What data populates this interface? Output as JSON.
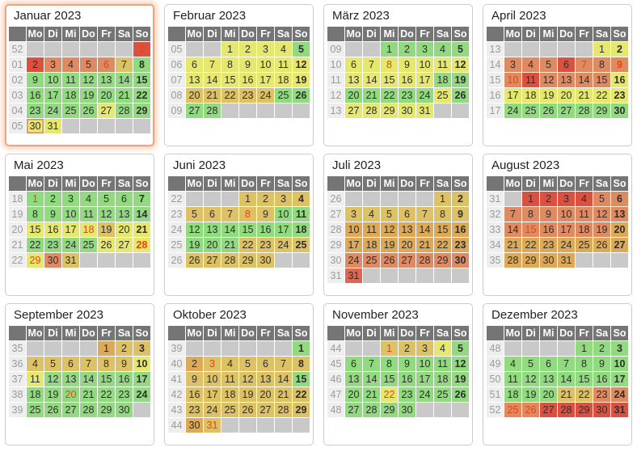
{
  "calendar": {
    "year": "2023",
    "weekday_headers": [
      "Mo",
      "Di",
      "Mi",
      "Do",
      "Fr",
      "Sa",
      "So"
    ],
    "highlighted_month": "Januar 2023",
    "today": "30. Januar 2023"
  },
  "colors": {
    "level_green": "#92da7f",
    "level_yellow": "#e6e76f",
    "level_gold": "#dcc166",
    "level_amber": "#dba957",
    "level_salmon": "#de8a62",
    "level_lightred": "#e3654f",
    "level_red": "#da5142",
    "empty_cell": "#c9c9c9",
    "header_bg": "#757575",
    "weeknum_bg": "#eeeeee",
    "weeknum_text": "#9a9a9a",
    "day_text": "#2e2e2e",
    "holiday_text": "#ea4408",
    "today_border": "#e2836a",
    "panel_border": "#cccccc",
    "highlight_border": "#f0a47e",
    "highlight_glow": "rgba(243,176,130,0.6)",
    "title_text": "#222222"
  },
  "months": [
    {
      "title": "Januar 2023",
      "slug": "januar",
      "highlight": true,
      "weeks": [
        {
          "n": "52",
          "d": [
            "",
            "",
            "",
            "",
            "",
            "",
            "1:r:h"
          ]
        },
        {
          "n": "01",
          "d": [
            "2:r",
            "3:s",
            "4:s",
            "5:s",
            "6:s:h",
            "7:t",
            "8:g"
          ]
        },
        {
          "n": "02",
          "d": [
            "9:g",
            "10:g",
            "11:g",
            "12:g",
            "13:g",
            "14:g",
            "15:g"
          ]
        },
        {
          "n": "03",
          "d": [
            "16:g",
            "17:g",
            "18:g",
            "19:g",
            "20:g",
            "21:g",
            "22:g"
          ]
        },
        {
          "n": "04",
          "d": [
            "23:g",
            "24:g",
            "25:g",
            "26:g",
            "27:y",
            "28:g",
            "29:g"
          ]
        },
        {
          "n": "05",
          "d": [
            "30:y:T",
            "31:y",
            "",
            "",
            "",
            "",
            ""
          ]
        }
      ]
    },
    {
      "title": "Februar 2023",
      "slug": "februar",
      "highlight": false,
      "weeks": [
        {
          "n": "05",
          "d": [
            "",
            "",
            "1:y",
            "2:y",
            "3:y",
            "4:y",
            "5:g"
          ]
        },
        {
          "n": "06",
          "d": [
            "6:y",
            "7:y",
            "8:y",
            "9:y",
            "10:y",
            "11:y",
            "12:y"
          ]
        },
        {
          "n": "07",
          "d": [
            "13:y",
            "14:y",
            "15:y",
            "16:y",
            "17:y",
            "18:y",
            "19:y"
          ]
        },
        {
          "n": "08",
          "d": [
            "20:t",
            "21:t",
            "22:t",
            "23:t",
            "24:t",
            "25:g",
            "26:g"
          ]
        },
        {
          "n": "09",
          "d": [
            "27:g",
            "28:g",
            "",
            "",
            "",
            "",
            ""
          ]
        }
      ]
    },
    {
      "title": "März 2023",
      "slug": "maerz",
      "highlight": false,
      "weeks": [
        {
          "n": "09",
          "d": [
            "",
            "",
            "1:g",
            "2:g",
            "3:g",
            "4:g",
            "5:g"
          ]
        },
        {
          "n": "10",
          "d": [
            "6:y",
            "7:y",
            "8:y:h",
            "9:y",
            "10:y",
            "11:y",
            "12:y"
          ]
        },
        {
          "n": "11",
          "d": [
            "13:y",
            "14:y",
            "15:y",
            "16:y",
            "17:y",
            "18:g",
            "19:g"
          ]
        },
        {
          "n": "12",
          "d": [
            "20:g",
            "21:g",
            "22:g",
            "23:g",
            "24:g",
            "25:y",
            "26:g"
          ]
        },
        {
          "n": "13",
          "d": [
            "27:y",
            "28:y",
            "29:y",
            "30:y",
            "31:y",
            "",
            ""
          ]
        }
      ]
    },
    {
      "title": "April 2023",
      "slug": "april",
      "highlight": false,
      "weeks": [
        {
          "n": "13",
          "d": [
            "",
            "",
            "",
            "",
            "",
            "1:y",
            "2:y"
          ]
        },
        {
          "n": "14",
          "d": [
            "3:s",
            "4:s",
            "5:s",
            "6:r",
            "7:s:h",
            "8:s",
            "9:s:h"
          ]
        },
        {
          "n": "15",
          "d": [
            "10:s:h",
            "11:r",
            "12:s",
            "13:s",
            "14:s",
            "15:s",
            "16:y"
          ]
        },
        {
          "n": "16",
          "d": [
            "17:y",
            "18:y",
            "19:y",
            "20:y",
            "21:y",
            "22:y",
            "23:y"
          ]
        },
        {
          "n": "17",
          "d": [
            "24:g",
            "25:g",
            "26:g",
            "27:g",
            "28:g",
            "29:g",
            "30:g"
          ]
        }
      ]
    },
    {
      "title": "Mai 2023",
      "slug": "mai",
      "highlight": false,
      "weeks": [
        {
          "n": "18",
          "d": [
            "1:g:h",
            "2:g",
            "3:g",
            "4:g",
            "5:g",
            "6:g",
            "7:g"
          ]
        },
        {
          "n": "19",
          "d": [
            "8:g",
            "9:g",
            "10:g",
            "11:g",
            "12:g",
            "13:g",
            "14:g"
          ]
        },
        {
          "n": "20",
          "d": [
            "15:y",
            "16:y",
            "17:y",
            "18:y:h",
            "19:t",
            "20:y",
            "21:y"
          ]
        },
        {
          "n": "21",
          "d": [
            "22:g",
            "23:g",
            "24:g",
            "25:g",
            "26:y",
            "27:y",
            "28:y:h"
          ]
        },
        {
          "n": "22",
          "d": [
            "29:y:h",
            "30:s",
            "31:t",
            "",
            "",
            "",
            ""
          ]
        }
      ]
    },
    {
      "title": "Juni 2023",
      "slug": "juni",
      "highlight": false,
      "weeks": [
        {
          "n": "22",
          "d": [
            "",
            "",
            "",
            "1:t",
            "2:t",
            "3:t",
            "4:t"
          ]
        },
        {
          "n": "23",
          "d": [
            "5:t",
            "6:t",
            "7:t",
            "8:t:h",
            "9:t",
            "10:g",
            "11:g"
          ]
        },
        {
          "n": "24",
          "d": [
            "12:g",
            "13:g",
            "14:g",
            "15:g",
            "16:g",
            "17:g",
            "18:g"
          ]
        },
        {
          "n": "25",
          "d": [
            "19:g",
            "20:g",
            "21:g",
            "22:t",
            "23:t",
            "24:t",
            "25:t"
          ]
        },
        {
          "n": "26",
          "d": [
            "26:t",
            "27:t",
            "28:t",
            "29:t",
            "30:t",
            "",
            ""
          ]
        }
      ]
    },
    {
      "title": "Juli 2023",
      "slug": "juli",
      "highlight": false,
      "weeks": [
        {
          "n": "26",
          "d": [
            "",
            "",
            "",
            "",
            "",
            "1:t",
            "2:t"
          ]
        },
        {
          "n": "27",
          "d": [
            "3:t",
            "4:t",
            "5:t",
            "6:t",
            "7:t",
            "8:t",
            "9:t"
          ]
        },
        {
          "n": "28",
          "d": [
            "10:a",
            "11:a",
            "12:a",
            "13:a",
            "14:a",
            "15:a",
            "16:a"
          ]
        },
        {
          "n": "29",
          "d": [
            "17:a",
            "18:a",
            "19:a",
            "20:a",
            "21:a",
            "22:a",
            "23:a"
          ]
        },
        {
          "n": "30",
          "d": [
            "24:s",
            "25:s",
            "26:s",
            "27:s",
            "28:s",
            "29:s",
            "30:s"
          ]
        },
        {
          "n": "31",
          "d": [
            "31:o",
            "",
            "",
            "",
            "",
            "",
            ""
          ]
        }
      ]
    },
    {
      "title": "August 2023",
      "slug": "august",
      "highlight": false,
      "weeks": [
        {
          "n": "31",
          "d": [
            "",
            "1:r",
            "2:r",
            "3:r",
            "4:r",
            "5:s",
            "6:s"
          ]
        },
        {
          "n": "32",
          "d": [
            "7:s",
            "8:s",
            "9:s",
            "10:s",
            "11:s",
            "12:s",
            "13:s"
          ]
        },
        {
          "n": "33",
          "d": [
            "14:s",
            "15:s:h",
            "16:s",
            "17:s",
            "18:s",
            "19:s",
            "20:a"
          ]
        },
        {
          "n": "34",
          "d": [
            "21:a",
            "22:a",
            "23:a",
            "24:a",
            "25:a",
            "26:a",
            "27:a"
          ]
        },
        {
          "n": "35",
          "d": [
            "28:a",
            "29:a",
            "30:a",
            "31:a",
            "",
            "",
            ""
          ]
        }
      ]
    },
    {
      "title": "September 2023",
      "slug": "september",
      "highlight": false,
      "weeks": [
        {
          "n": "35",
          "d": [
            "",
            "",
            "",
            "",
            "1:a",
            "2:t",
            "3:t"
          ]
        },
        {
          "n": "36",
          "d": [
            "4:t",
            "5:t",
            "6:t",
            "7:t",
            "8:t",
            "9:t",
            "10:y"
          ]
        },
        {
          "n": "37",
          "d": [
            "11:y",
            "12:g",
            "13:g",
            "14:g",
            "15:g",
            "16:g",
            "17:g"
          ]
        },
        {
          "n": "38",
          "d": [
            "18:g",
            "19:g",
            "20:g:h",
            "21:g",
            "22:g",
            "23:g",
            "24:g"
          ]
        },
        {
          "n": "39",
          "d": [
            "25:g",
            "26:g",
            "27:g",
            "28:g",
            "29:g",
            "30:g",
            ""
          ]
        }
      ]
    },
    {
      "title": "Oktober 2023",
      "slug": "oktober",
      "highlight": false,
      "weeks": [
        {
          "n": "39",
          "d": [
            "",
            "",
            "",
            "",
            "",
            "",
            "1:g"
          ]
        },
        {
          "n": "40",
          "d": [
            "2:a",
            "3:t:h",
            "4:t",
            "5:t",
            "6:t",
            "7:t",
            "8:t"
          ]
        },
        {
          "n": "41",
          "d": [
            "9:t",
            "10:t",
            "11:t",
            "12:t",
            "13:t",
            "14:t",
            "15:g"
          ]
        },
        {
          "n": "42",
          "d": [
            "16:t",
            "17:t",
            "18:t",
            "19:t",
            "20:t",
            "21:t",
            "22:t"
          ]
        },
        {
          "n": "43",
          "d": [
            "23:t",
            "24:t",
            "25:t",
            "26:t",
            "27:t",
            "28:t",
            "29:t"
          ]
        },
        {
          "n": "44",
          "d": [
            "30:a",
            "31:t:h",
            "",
            "",
            "",
            "",
            ""
          ]
        }
      ]
    },
    {
      "title": "November 2023",
      "slug": "november",
      "highlight": false,
      "weeks": [
        {
          "n": "44",
          "d": [
            "",
            "",
            "1:t:h",
            "2:t",
            "3:t",
            "4:y",
            "5:g"
          ]
        },
        {
          "n": "45",
          "d": [
            "6:g",
            "7:g",
            "8:g",
            "9:g",
            "10:g",
            "11:g",
            "12:g"
          ]
        },
        {
          "n": "46",
          "d": [
            "13:g",
            "14:g",
            "15:g",
            "16:g",
            "17:g",
            "18:g",
            "19:g"
          ]
        },
        {
          "n": "47",
          "d": [
            "20:g",
            "21:g",
            "22:y:h",
            "23:g",
            "24:g",
            "25:g",
            "26:g"
          ]
        },
        {
          "n": "48",
          "d": [
            "27:g",
            "28:g",
            "29:g",
            "30:g",
            "",
            "",
            ""
          ]
        }
      ]
    },
    {
      "title": "Dezember 2023",
      "slug": "dezember",
      "highlight": false,
      "weeks": [
        {
          "n": "48",
          "d": [
            "",
            "",
            "",
            "",
            "1:g",
            "2:g",
            "3:g"
          ]
        },
        {
          "n": "49",
          "d": [
            "4:g",
            "5:g",
            "6:g",
            "7:g",
            "8:g",
            "9:g",
            "10:g"
          ]
        },
        {
          "n": "50",
          "d": [
            "11:g",
            "12:g",
            "13:g",
            "14:g",
            "15:g",
            "16:g",
            "17:g"
          ]
        },
        {
          "n": "51",
          "d": [
            "18:g",
            "19:g",
            "20:g",
            "21:t",
            "22:t",
            "23:s",
            "24:s"
          ]
        },
        {
          "n": "52",
          "d": [
            "25:s:h",
            "26:s:h",
            "27:r",
            "28:r",
            "29:r",
            "30:r",
            "31:r"
          ]
        }
      ]
    }
  ]
}
